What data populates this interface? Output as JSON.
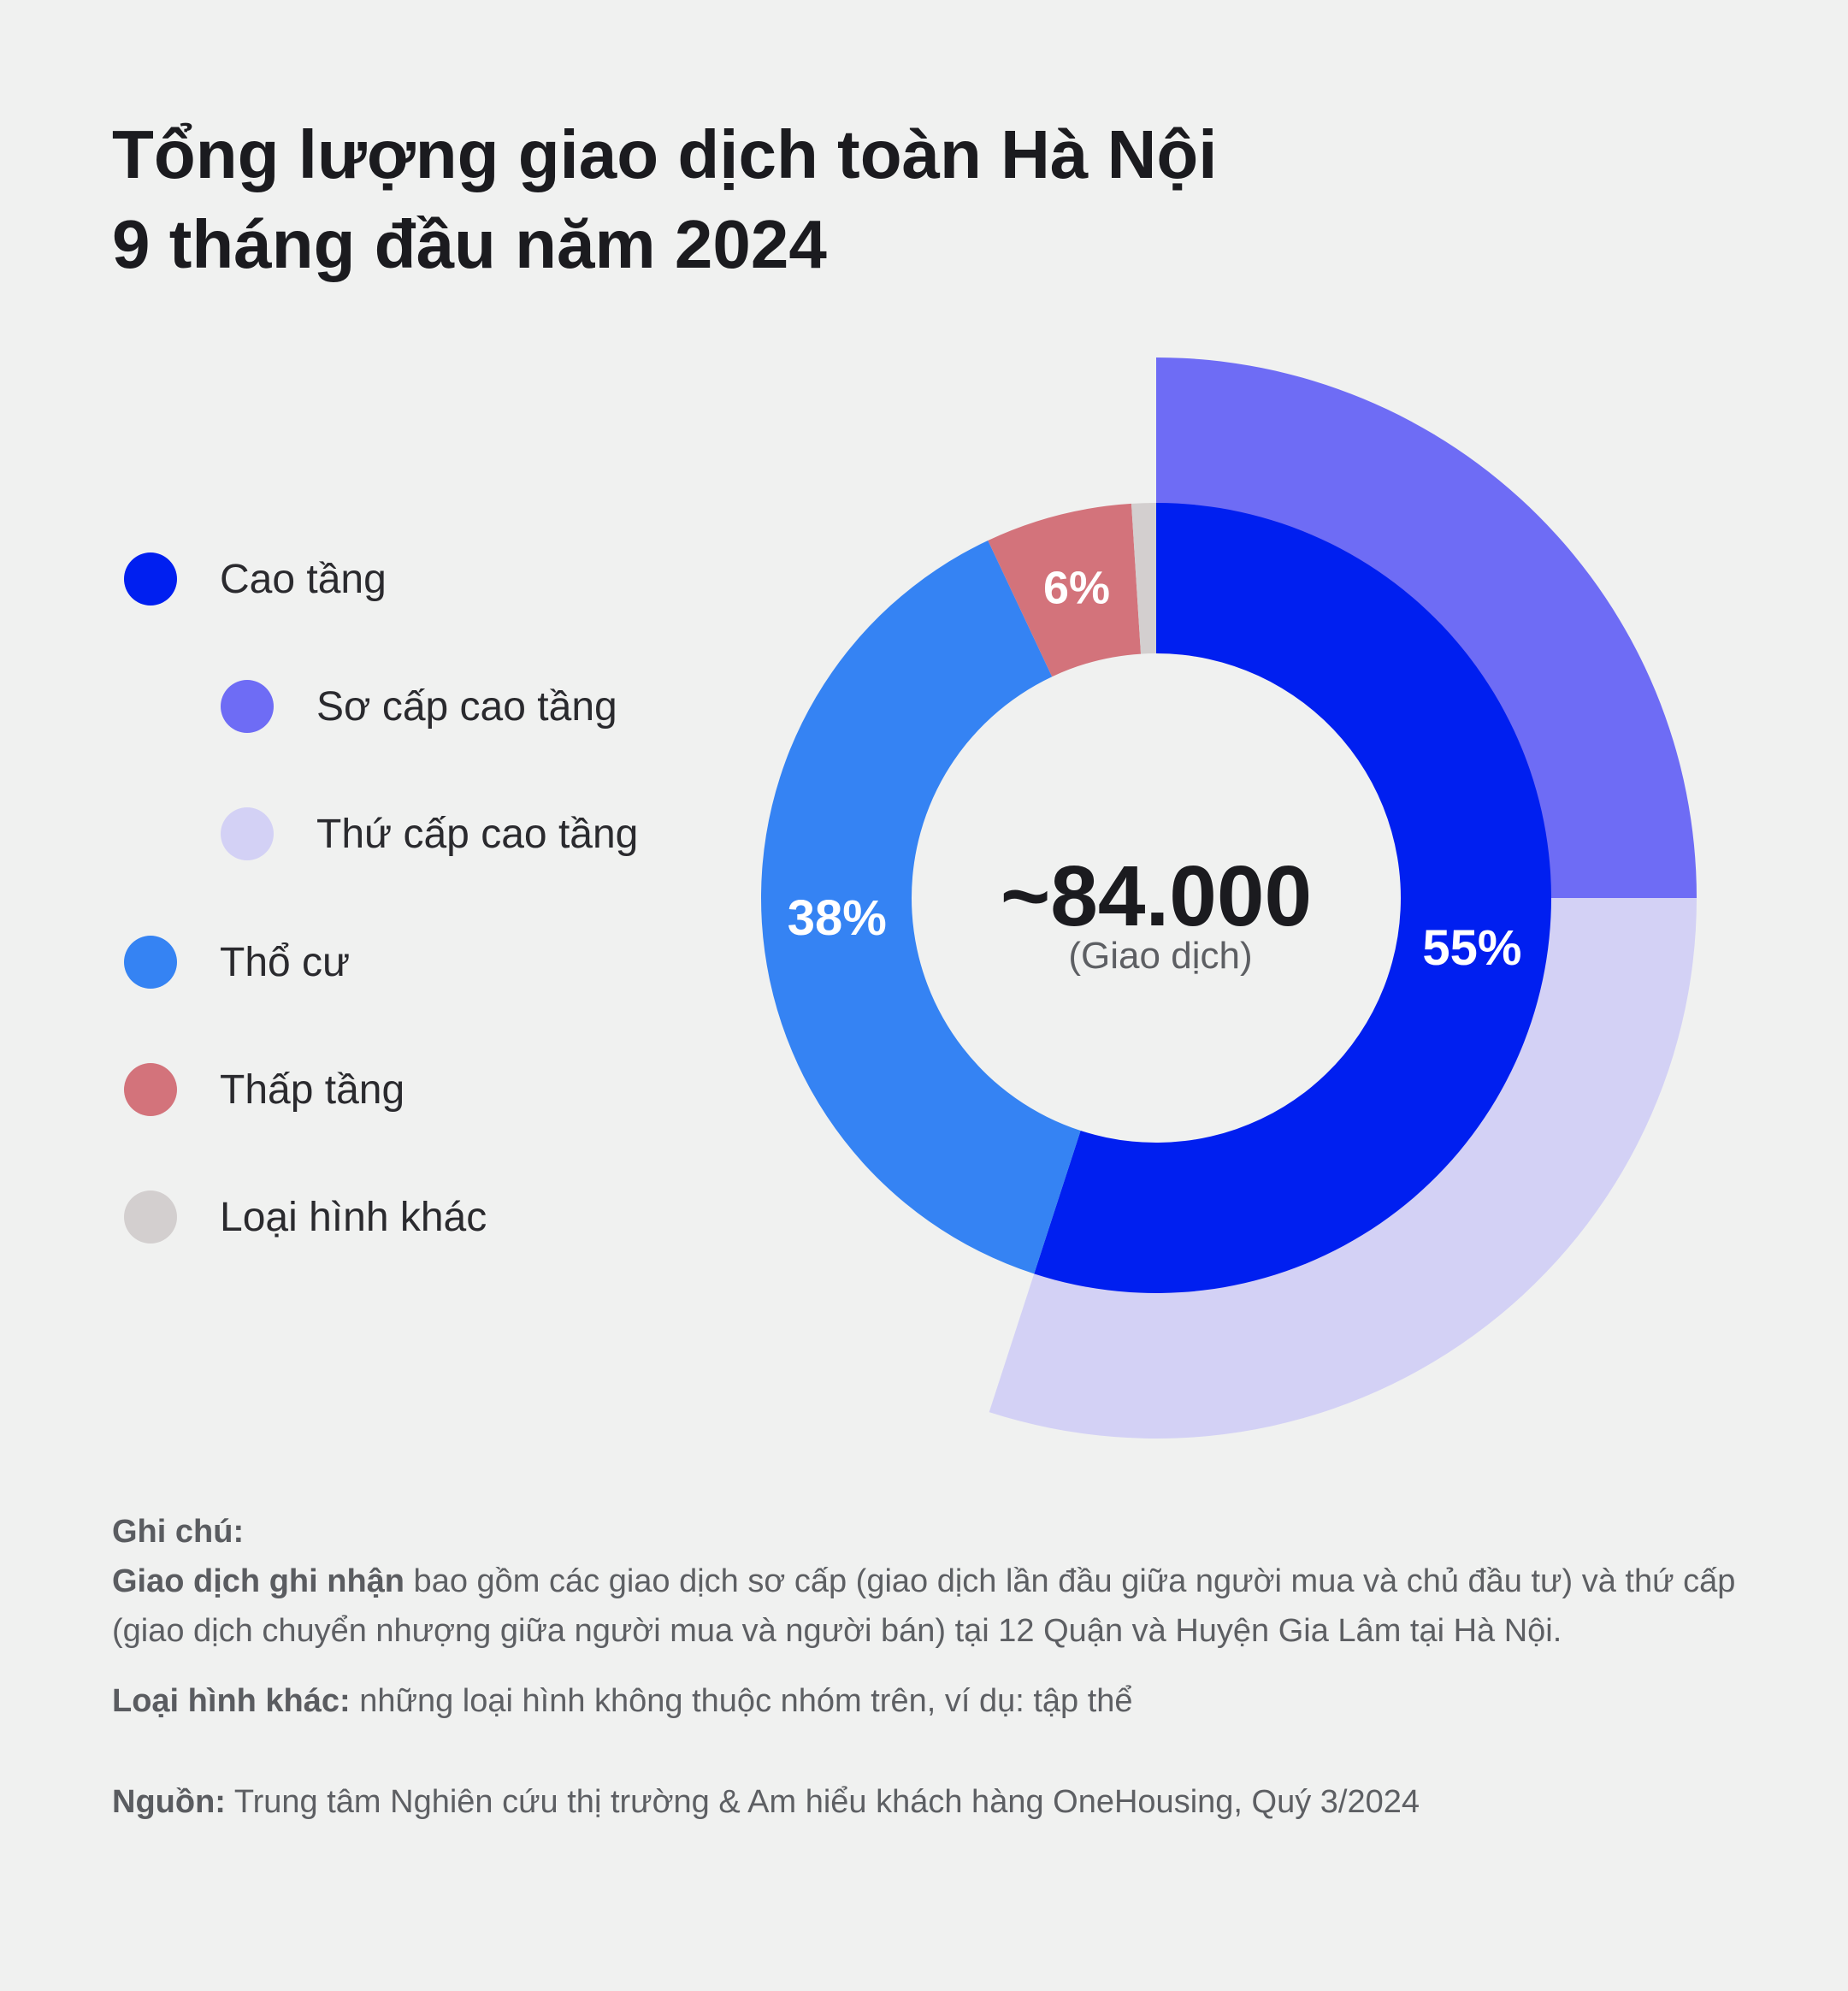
{
  "title": {
    "line1": "Tổng lượng giao dịch toàn Hà Nội",
    "line2": "9 tháng đầu năm 2024"
  },
  "legend": [
    {
      "label": "Cao tầng",
      "color": "#001ff0"
    },
    {
      "label": "Sơ cấp cao tầng",
      "color": "#6e6cf5"
    },
    {
      "label": "Thứ cấp cao tầng",
      "color": "#d3d1f5"
    },
    {
      "label": "Thổ cư",
      "color": "#3583f3"
    },
    {
      "label": "Thấp tầng",
      "color": "#d3737b"
    },
    {
      "label": "Loại hình khác",
      "color": "#d3cfcf"
    }
  ],
  "chart_data": {
    "type": "pie",
    "center_value": "~84.000",
    "center_unit": "(Giao dịch)",
    "inner_ring": [
      {
        "name": "Cao tầng",
        "value": 55,
        "label": "55%",
        "color": "#001ff0"
      },
      {
        "name": "Thổ cư",
        "value": 38,
        "label": "38%",
        "color": "#3583f3"
      },
      {
        "name": "Thấp tầng",
        "value": 6,
        "label": "6%",
        "color": "#d3737b"
      },
      {
        "name": "Loại hình khác",
        "value": 1,
        "label": "",
        "color": "#d3cfcf"
      }
    ],
    "outer_ring": [
      {
        "name": "Sơ cấp cao tầng",
        "value": 25,
        "color": "#6e6cf5"
      },
      {
        "name": "Thứ cấp cao tầng",
        "value": 30,
        "color": "#d3d1f5"
      }
    ]
  },
  "notes": {
    "heading": "Ghi chú:",
    "def_bold": "Giao dịch ghi nhận",
    "def_text": " bao gồm các giao dịch sơ cấp (giao dịch lần đầu giữa người mua và chủ đầu tư) và thứ cấp (giao dịch chuyển nhượng giữa người mua và người bán) tại 12 Quận và Huyện Gia Lâm tại Hà Nội.",
    "other_bold": "Loại hình khác:",
    "other_text": " những loại hình không thuộc nhóm trên, ví dụ: tập thể",
    "source_bold": "Nguồn:",
    "source_text": " Trung tâm Nghiên cứu thị trường & Am hiểu khách hàng OneHousing, Quý 3/2024"
  }
}
